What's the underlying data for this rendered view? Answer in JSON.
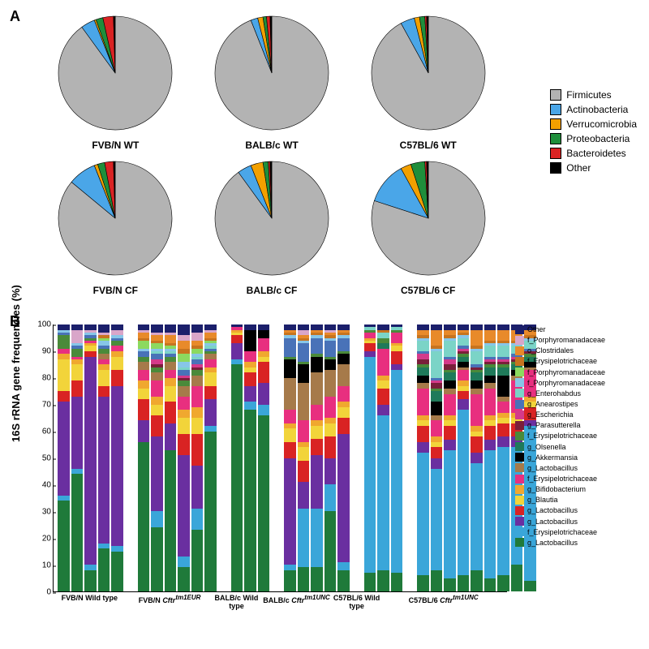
{
  "panelA": {
    "label": "A",
    "legend": [
      {
        "name": "Firmicutes",
        "color": "#b3b3b3"
      },
      {
        "name": "Actinobacteria",
        "color": "#4aa6e8"
      },
      {
        "name": "Verrucomicrobia",
        "color": "#f2a000"
      },
      {
        "name": "Proteobacteria",
        "color": "#1f8e3b"
      },
      {
        "name": "Bacteroidetes",
        "color": "#d92323"
      },
      {
        "name": "Other",
        "color": "#000000"
      }
    ],
    "pies": [
      {
        "title": "FVB/N WT",
        "slices": [
          90,
          4,
          0.5,
          2,
          3,
          0.5
        ]
      },
      {
        "title": "BALB/c WT",
        "slices": [
          94,
          2,
          1.5,
          1,
          1,
          0.5
        ]
      },
      {
        "title": "C57BL/6 WT",
        "slices": [
          92,
          4,
          1.5,
          1.5,
          0.5,
          0.5
        ]
      },
      {
        "title": "FVB/N CF",
        "slices": [
          86,
          8,
          1,
          2,
          2.5,
          0.5
        ]
      },
      {
        "title": "BALB/c CF",
        "slices": [
          90,
          4,
          3.5,
          1.5,
          0.5,
          0.5
        ]
      },
      {
        "title": "C57BL/6 CF",
        "slices": [
          80,
          12,
          3,
          4,
          0.5,
          0.5
        ]
      }
    ]
  },
  "panelB": {
    "label": "B",
    "ylabel": "16S rRNA gene frequencies (%)",
    "ylim": [
      0,
      100
    ],
    "ytick_step": 10,
    "taxa": [
      {
        "name": "Other",
        "color": "#1b1f6b"
      },
      {
        "name": "f_Porphyromanadaceae",
        "color": "#d9a6c9"
      },
      {
        "name": "o_Clostridales",
        "color": "#e88a2a"
      },
      {
        "name": "f_Erysipelotrichaceae",
        "color": "#c7741f"
      },
      {
        "name": "f_Porphyromanadaceae",
        "color": "#8cd95f"
      },
      {
        "name": "f_Porphyromanadaceae",
        "color": "#87c6e8"
      },
      {
        "name": "g_Enterohabdus",
        "color": "#7bd4c7"
      },
      {
        "name": "g_Anearostipes",
        "color": "#4972b8"
      },
      {
        "name": "g_Escherichia",
        "color": "#d43a8a"
      },
      {
        "name": "g_Parasutterella",
        "color": "#7a1f3a"
      },
      {
        "name": "f_Erysipelotrichaceae",
        "color": "#4a8a3a"
      },
      {
        "name": "g_Olsenella",
        "color": "#1f7a5a"
      },
      {
        "name": "g_Akkermansia",
        "color": "#000000"
      },
      {
        "name": "g_Lactobacillus",
        "color": "#a67a4a"
      },
      {
        "name": "f_Erysipelotrichaceae",
        "color": "#e82f7f"
      },
      {
        "name": "g_Bifidobacterium",
        "color": "#f0a82f"
      },
      {
        "name": "g_Blautia",
        "color": "#f2d43a"
      },
      {
        "name": "g_Lactobacillus",
        "color": "#d92323"
      },
      {
        "name": "g_Lactobacillus",
        "color": "#6a2fa0"
      },
      {
        "name": "f_Erysipelotrichaceae",
        "color": "#3aa6d9"
      },
      {
        "name": "g_Lactobacillus",
        "color": "#1f7a3a"
      }
    ],
    "groups": [
      {
        "label": "FVB/N Wild type",
        "n": 5,
        "bars": [
          [
            2,
            0,
            0,
            0,
            0,
            1,
            0,
            1,
            0,
            0,
            5,
            0,
            0,
            0,
            2,
            2,
            12,
            4,
            35,
            2,
            34
          ],
          [
            2,
            5,
            0,
            0,
            0,
            1,
            0,
            1,
            0,
            0,
            3,
            0,
            0,
            0,
            1,
            2,
            6,
            6,
            27,
            2,
            44
          ],
          [
            2,
            1,
            0,
            0,
            0,
            1,
            0,
            1,
            0,
            0,
            1,
            0,
            0,
            0,
            1,
            1,
            2,
            2,
            78,
            2,
            8
          ],
          [
            3,
            1,
            0,
            1,
            1,
            2,
            0,
            1,
            0,
            0,
            2,
            0,
            0,
            2,
            2,
            2,
            6,
            4,
            55,
            2,
            16
          ],
          [
            2,
            2,
            0,
            0,
            0,
            1,
            0,
            1,
            0,
            0,
            2,
            0,
            0,
            0,
            2,
            2,
            5,
            6,
            60,
            2,
            15
          ]
        ]
      },
      {
        "label_html": "FVB/N <i>Cftr</i><sup class='it'>tm1EUR</sup>",
        "label": "FVB/N Cftr^tm1EUR",
        "n": 6,
        "bars": [
          [
            2,
            1,
            2,
            1,
            3,
            1,
            0,
            2,
            0,
            0,
            2,
            0,
            0,
            3,
            4,
            3,
            4,
            8,
            8,
            0,
            56
          ],
          [
            3,
            1,
            2,
            1,
            2,
            1,
            1,
            2,
            2,
            1,
            2,
            0,
            0,
            3,
            6,
            3,
            4,
            8,
            28,
            6,
            24
          ],
          [
            3,
            1,
            3,
            1,
            1,
            1,
            1,
            1,
            0,
            0,
            2,
            0,
            0,
            3,
            3,
            3,
            6,
            8,
            10,
            0,
            53
          ],
          [
            4,
            2,
            3,
            2,
            3,
            2,
            1,
            2,
            1,
            1,
            2,
            0,
            0,
            4,
            5,
            3,
            6,
            8,
            38,
            4,
            9
          ],
          [
            3,
            3,
            2,
            1,
            2,
            1,
            1,
            2,
            1,
            1,
            2,
            0,
            0,
            4,
            8,
            4,
            6,
            12,
            16,
            8,
            23
          ],
          [
            2,
            1,
            2,
            1,
            1,
            1,
            1,
            1,
            0,
            0,
            1,
            0,
            0,
            2,
            3,
            2,
            5,
            5,
            10,
            2,
            60
          ]
        ]
      },
      {
        "label": "BALB/c Wild type",
        "n": 3,
        "bars": [
          [
            1,
            0,
            0,
            0,
            0,
            0,
            0,
            0,
            0,
            0,
            0,
            0,
            0,
            0,
            1,
            1,
            1,
            3,
            6,
            2,
            85
          ],
          [
            2,
            0,
            0,
            0,
            0,
            0,
            0,
            0,
            0,
            0,
            0,
            0,
            8,
            0,
            4,
            2,
            2,
            5,
            6,
            3,
            68
          ],
          [
            2,
            0,
            0,
            0,
            0,
            0,
            0,
            0,
            0,
            0,
            0,
            0,
            3,
            0,
            5,
            2,
            2,
            8,
            8,
            4,
            66
          ]
        ]
      },
      {
        "label_html": "BALB/c <i>Cftr</i><sup class='it'>tm1UNC</sup>",
        "label": "BALB/c Cftr^tm1UNC",
        "n": 5,
        "bars": [
          [
            2,
            0,
            1,
            1,
            0,
            1,
            0,
            7,
            0,
            0,
            1,
            0,
            7,
            12,
            5,
            2,
            5,
            6,
            40,
            2,
            8
          ],
          [
            2,
            2,
            1,
            1,
            0,
            1,
            0,
            7,
            0,
            0,
            1,
            0,
            7,
            14,
            8,
            2,
            5,
            8,
            10,
            22,
            9
          ],
          [
            2,
            0,
            1,
            1,
            0,
            1,
            0,
            6,
            0,
            0,
            1,
            0,
            6,
            12,
            6,
            2,
            5,
            6,
            20,
            22,
            9
          ],
          [
            2,
            1,
            1,
            1,
            0,
            1,
            0,
            6,
            0,
            0,
            1,
            0,
            4,
            10,
            8,
            2,
            5,
            8,
            10,
            10,
            30
          ],
          [
            2,
            0,
            1,
            1,
            0,
            1,
            0,
            5,
            0,
            0,
            1,
            0,
            4,
            8,
            6,
            2,
            4,
            6,
            48,
            3,
            8
          ]
        ]
      },
      {
        "label": "C57BL/6 Wild type",
        "n": 3,
        "bars": [
          [
            1,
            0,
            0,
            0,
            0,
            0,
            1,
            0,
            0,
            0,
            1,
            0,
            0,
            0,
            2,
            1,
            1,
            3,
            2,
            81,
            7
          ],
          [
            2,
            0,
            0,
            1,
            0,
            0,
            2,
            0,
            0,
            0,
            2,
            2,
            0,
            0,
            10,
            2,
            3,
            6,
            4,
            58,
            8
          ],
          [
            1,
            0,
            0,
            0,
            0,
            0,
            1,
            0,
            0,
            0,
            1,
            0,
            0,
            0,
            4,
            1,
            2,
            5,
            2,
            76,
            7
          ]
        ]
      },
      {
        "label_html": "C57BL/6 <i>Cftr</i><sup class='it'>tm1UNC</sup>",
        "label": "C57BL/6 Cftr^tm1UNC",
        "n": 9,
        "bars": [
          [
            2,
            0,
            2,
            1,
            0,
            1,
            4,
            1,
            2,
            2,
            1,
            3,
            3,
            2,
            10,
            2,
            2,
            6,
            4,
            46,
            6
          ],
          [
            2,
            0,
            6,
            1,
            0,
            1,
            10,
            1,
            1,
            2,
            1,
            4,
            5,
            2,
            6,
            2,
            2,
            4,
            4,
            38,
            8
          ],
          [
            2,
            0,
            2,
            1,
            0,
            1,
            6,
            1,
            2,
            2,
            1,
            3,
            3,
            2,
            8,
            2,
            2,
            5,
            4,
            48,
            5
          ],
          [
            2,
            0,
            1,
            1,
            0,
            1,
            3,
            1,
            1,
            1,
            1,
            2,
            2,
            1,
            4,
            2,
            2,
            3,
            4,
            62,
            6
          ],
          [
            2,
            0,
            6,
            1,
            0,
            1,
            5,
            1,
            0,
            1,
            1,
            3,
            3,
            2,
            12,
            2,
            2,
            6,
            4,
            40,
            8
          ],
          [
            2,
            0,
            4,
            1,
            0,
            1,
            4,
            1,
            1,
            1,
            1,
            3,
            3,
            2,
            10,
            2,
            2,
            5,
            4,
            48,
            5
          ],
          [
            2,
            0,
            4,
            1,
            0,
            1,
            4,
            1,
            1,
            1,
            1,
            3,
            8,
            2,
            4,
            2,
            2,
            5,
            4,
            48,
            6
          ],
          [
            2,
            0,
            4,
            1,
            0,
            1,
            3,
            1,
            1,
            1,
            1,
            2,
            2,
            2,
            12,
            2,
            2,
            5,
            4,
            44,
            10
          ],
          [
            2,
            0,
            2,
            1,
            0,
            1,
            3,
            1,
            0,
            1,
            1,
            2,
            2,
            1,
            10,
            2,
            2,
            5,
            2,
            58,
            4
          ]
        ]
      }
    ]
  }
}
